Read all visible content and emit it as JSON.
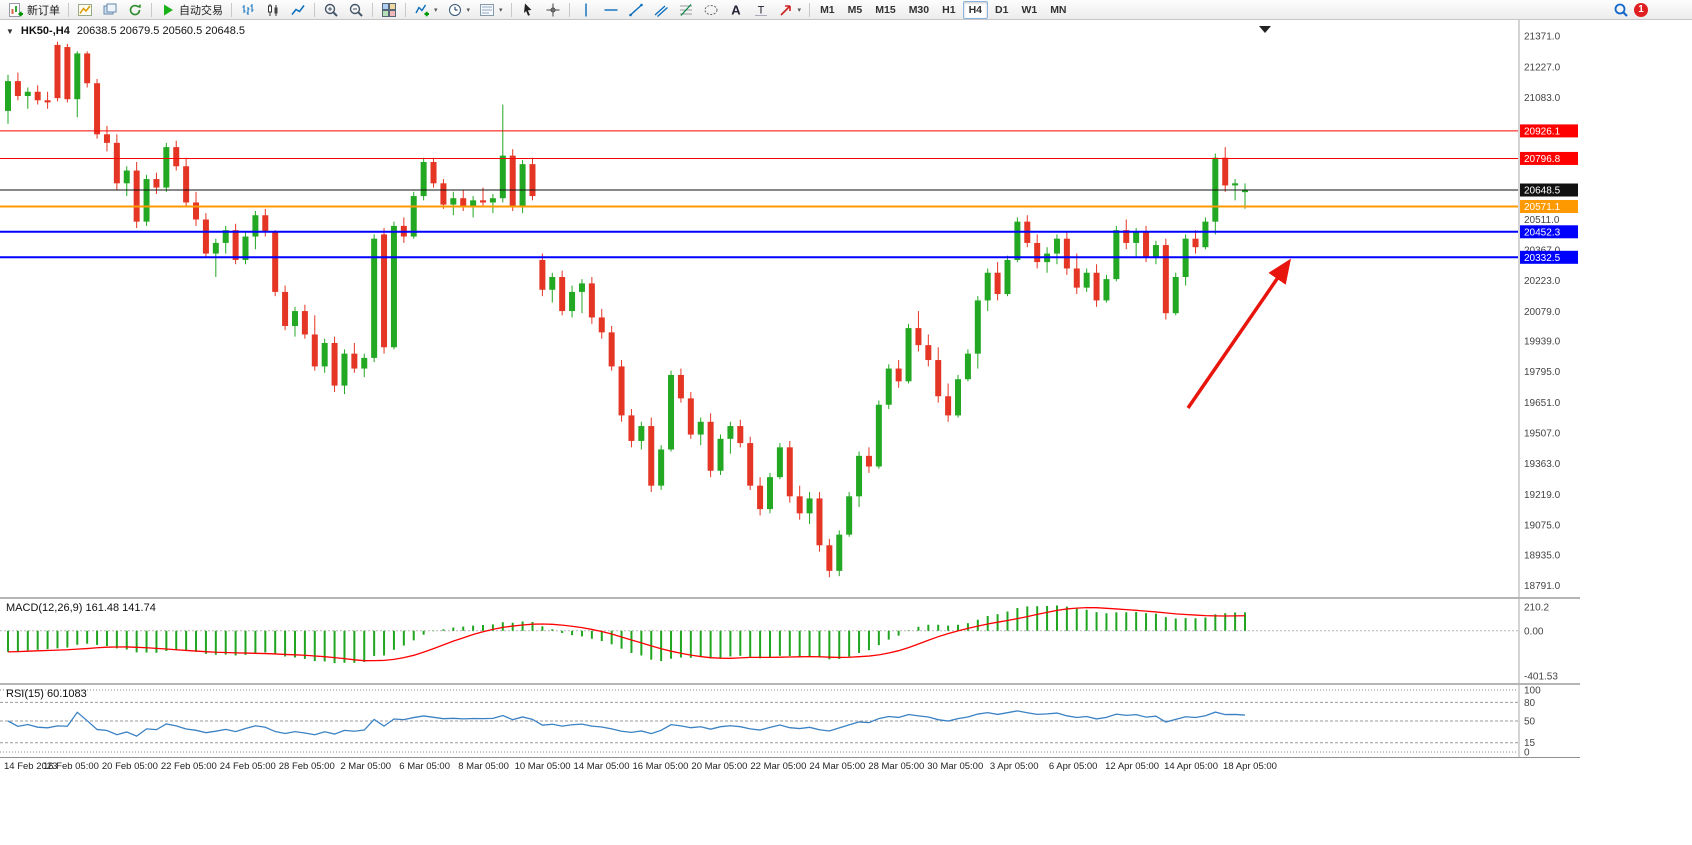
{
  "colors": {
    "up": "#22a822",
    "down": "#e53524",
    "macd_hist": "#1fa51f",
    "macd_signal": "#ff0000",
    "rsi_line": "#3b82c4",
    "axis_text": "#444444",
    "arrow": "#e8150d"
  },
  "toolbar": {
    "new_order_label": "新订单",
    "autotrading_label": "自动交易",
    "timeframes": [
      "M1",
      "M5",
      "M15",
      "M30",
      "H1",
      "H4",
      "D1",
      "W1",
      "MN"
    ],
    "active_timeframe": "H4",
    "notification_count": "1",
    "items": [
      {
        "type": "button",
        "name": "new-order-button",
        "icon": "new-order-icon",
        "label_path": "toolbar.new_order_label"
      },
      {
        "type": "sep"
      },
      {
        "type": "button",
        "name": "new-chart-button",
        "icon": "new-chart-icon"
      },
      {
        "type": "button",
        "name": "profiles-button",
        "icon": "profiles-icon"
      },
      {
        "type": "button",
        "name": "refresh-button",
        "icon": "refresh-icon"
      },
      {
        "type": "sep"
      },
      {
        "type": "button",
        "name": "autotrading-button",
        "icon": "play-icon",
        "label_path": "toolbar.autotrading_label"
      },
      {
        "type": "sep"
      },
      {
        "type": "button",
        "name": "bar-chart-button",
        "icon": "bar-chart-icon"
      },
      {
        "type": "button",
        "name": "candlestick-chart-button",
        "icon": "candlestick-chart-icon"
      },
      {
        "type": "button",
        "name": "line-chart-button",
        "icon": "line-chart-icon"
      },
      {
        "type": "sep"
      },
      {
        "type": "button",
        "name": "zoom-in-button",
        "icon": "zoom-in-icon"
      },
      {
        "type": "button",
        "name": "zoom-out-button",
        "icon": "zoom-out-icon"
      },
      {
        "type": "sep"
      },
      {
        "type": "button",
        "name": "tile-windows-button",
        "icon": "tile-windows-icon"
      },
      {
        "type": "sep"
      },
      {
        "type": "button",
        "name": "indicators-button",
        "icon": "indicators-icon",
        "caret": true
      },
      {
        "type": "button",
        "name": "periods-button",
        "icon": "clock-icon",
        "caret": true
      },
      {
        "type": "button",
        "name": "templates-button",
        "icon": "templates-icon",
        "caret": true
      },
      {
        "type": "sep"
      },
      {
        "type": "button",
        "name": "cursor-button",
        "icon": "cursor-icon"
      },
      {
        "type": "button",
        "name": "crosshair-button",
        "icon": "crosshair-icon"
      },
      {
        "type": "sep"
      },
      {
        "type": "button",
        "name": "vertical-line-button",
        "icon": "vline-icon"
      },
      {
        "type": "button",
        "name": "horizontal-line-button",
        "icon": "hline-icon"
      },
      {
        "type": "button",
        "name": "trendline-button",
        "icon": "trendline-icon"
      },
      {
        "type": "button",
        "name": "channel-button",
        "icon": "channel-icon"
      },
      {
        "type": "button",
        "name": "fibonacci-button",
        "icon": "fibonacci-icon"
      },
      {
        "type": "button",
        "name": "shapes-button",
        "icon": "shapes-icon"
      },
      {
        "type": "button",
        "name": "text-button",
        "icon": "text-icon"
      },
      {
        "type": "button",
        "name": "label-button",
        "icon": "label-icon"
      },
      {
        "type": "button",
        "name": "arrows-button",
        "icon": "arrow-icon",
        "caret": true
      },
      {
        "type": "sep"
      },
      {
        "type": "timeframes"
      },
      {
        "type": "spacer"
      },
      {
        "type": "button",
        "name": "search-button",
        "icon": "search-icon"
      },
      {
        "type": "badge",
        "name": "notification-badge",
        "label": "1"
      }
    ]
  },
  "chart": {
    "title": "HK50-,H4",
    "ohlc_readout": "20638.5 20679.5 20560.5 20648.5",
    "macd_title": "MACD(12,26,9)",
    "macd_values": "161.48 141.74",
    "rsi_title": "RSI(15)",
    "rsi_value": "60.1083"
  },
  "chart_data": {
    "type": "candlestick",
    "symbol": "HK50-",
    "timeframe": "H4",
    "ohlc_current": {
      "open": 20638.5,
      "high": 20679.5,
      "low": 20560.5,
      "close": 20648.5
    },
    "ylim": [
      18770,
      21400
    ],
    "price_axis_ticks": [
      "21371.0",
      "21227.0",
      "21083.0",
      "20511.0",
      "20367.0",
      "20223.0",
      "20079.0",
      "19939.0",
      "19795.0",
      "19651.0",
      "19507.0",
      "19363.0",
      "19219.0",
      "19075.0",
      "18935.0",
      "18791.0"
    ],
    "hlines": [
      {
        "value": 20926.1,
        "label": "20926.1",
        "color": "#ff0000",
        "width": 1
      },
      {
        "value": 20796.8,
        "label": "20796.8",
        "color": "#ff0000",
        "width": 1
      },
      {
        "value": 20571.1,
        "label": "20571.1",
        "color": "#ff9900",
        "width": 2
      },
      {
        "value": 20452.3,
        "label": "20452.3",
        "color": "#0000ff",
        "width": 2
      },
      {
        "value": 20332.5,
        "label": "20332.5",
        "color": "#0000ff",
        "width": 2
      }
    ],
    "price_line": {
      "value": 20648.5,
      "label": "20648.5",
      "color": "#111111"
    },
    "candles": [
      [
        21020,
        21190,
        20960,
        21160
      ],
      [
        21160,
        21200,
        21070,
        21090
      ],
      [
        21090,
        21130,
        21030,
        21110
      ],
      [
        21110,
        21140,
        21050,
        21070
      ],
      [
        21070,
        21110,
        21030,
        21060
      ],
      [
        21330,
        21345,
        21065,
        21080
      ],
      [
        21320,
        21335,
        21060,
        21075
      ],
      [
        21075,
        21300,
        20990,
        21290
      ],
      [
        21290,
        21300,
        21130,
        21150
      ],
      [
        21150,
        21170,
        20890,
        20910
      ],
      [
        20910,
        20950,
        20830,
        20870
      ],
      [
        20870,
        20910,
        20650,
        20680
      ],
      [
        20680,
        20760,
        20620,
        20740
      ],
      [
        20740,
        20780,
        20470,
        20500
      ],
      [
        20500,
        20720,
        20480,
        20700
      ],
      [
        20700,
        20730,
        20630,
        20660
      ],
      [
        20660,
        20870,
        20640,
        20850
      ],
      [
        20850,
        20880,
        20740,
        20760
      ],
      [
        20760,
        20800,
        20570,
        20590
      ],
      [
        20590,
        20640,
        20480,
        20510
      ],
      [
        20510,
        20540,
        20330,
        20350
      ],
      [
        20350,
        20420,
        20240,
        20400
      ],
      [
        20400,
        20480,
        20350,
        20460
      ],
      [
        20460,
        20490,
        20300,
        20320
      ],
      [
        20320,
        20450,
        20300,
        20430
      ],
      [
        20430,
        20550,
        20370,
        20530
      ],
      [
        20530,
        20560,
        20430,
        20450
      ],
      [
        20450,
        20460,
        20150,
        20170
      ],
      [
        20170,
        20200,
        19990,
        20010
      ],
      [
        20010,
        20100,
        19960,
        20080
      ],
      [
        20080,
        20110,
        19950,
        19970
      ],
      [
        19970,
        20060,
        19800,
        19820
      ],
      [
        19820,
        19950,
        19790,
        19930
      ],
      [
        19930,
        19960,
        19700,
        19730
      ],
      [
        19730,
        19900,
        19690,
        19880
      ],
      [
        19880,
        19930,
        19790,
        19810
      ],
      [
        19810,
        19880,
        19770,
        19860
      ],
      [
        19860,
        20440,
        19840,
        20420
      ],
      [
        20440,
        20470,
        19880,
        19910
      ],
      [
        19910,
        20500,
        19900,
        20480
      ],
      [
        20480,
        20520,
        20400,
        20430
      ],
      [
        20430,
        20640,
        20420,
        20620
      ],
      [
        20620,
        20800,
        20600,
        20780
      ],
      [
        20780,
        20800,
        20660,
        20680
      ],
      [
        20680,
        20700,
        20560,
        20580
      ],
      [
        20580,
        20640,
        20530,
        20610
      ],
      [
        20610,
        20650,
        20550,
        20570
      ],
      [
        20570,
        20620,
        20520,
        20600
      ],
      [
        20600,
        20660,
        20570,
        20590
      ],
      [
        20590,
        20630,
        20540,
        20610
      ],
      [
        20610,
        21050,
        20590,
        20810
      ],
      [
        20810,
        20840,
        20550,
        20570
      ],
      [
        20570,
        20790,
        20540,
        20770
      ],
      [
        20770,
        20800,
        20600,
        20620
      ],
      [
        20320,
        20350,
        20150,
        20180
      ],
      [
        20180,
        20260,
        20120,
        20240
      ],
      [
        20240,
        20270,
        20060,
        20080
      ],
      [
        20080,
        20200,
        20050,
        20170
      ],
      [
        20170,
        20230,
        20070,
        20210
      ],
      [
        20210,
        20240,
        20020,
        20050
      ],
      [
        20050,
        20090,
        19950,
        19980
      ],
      [
        19980,
        20010,
        19800,
        19820
      ],
      [
        19820,
        19850,
        19560,
        19590
      ],
      [
        19590,
        19620,
        19440,
        19470
      ],
      [
        19470,
        19560,
        19430,
        19540
      ],
      [
        19540,
        19580,
        19230,
        19260
      ],
      [
        19260,
        19450,
        19240,
        19430
      ],
      [
        19430,
        19800,
        19420,
        19780
      ],
      [
        19780,
        19810,
        19650,
        19670
      ],
      [
        19670,
        19700,
        19480,
        19500
      ],
      [
        19500,
        19580,
        19450,
        19560
      ],
      [
        19560,
        19600,
        19300,
        19330
      ],
      [
        19330,
        19500,
        19310,
        19480
      ],
      [
        19480,
        19560,
        19410,
        19540
      ],
      [
        19540,
        19570,
        19440,
        19460
      ],
      [
        19460,
        19490,
        19240,
        19260
      ],
      [
        19260,
        19300,
        19120,
        19150
      ],
      [
        19150,
        19320,
        19130,
        19300
      ],
      [
        19300,
        19460,
        19290,
        19440
      ],
      [
        19440,
        19470,
        19180,
        19210
      ],
      [
        19210,
        19260,
        19100,
        19130
      ],
      [
        19130,
        19230,
        19080,
        19200
      ],
      [
        19200,
        19230,
        18950,
        18980
      ],
      [
        18980,
        19010,
        18830,
        18860
      ],
      [
        18860,
        19050,
        18835,
        19030
      ],
      [
        19030,
        19230,
        19020,
        19210
      ],
      [
        19210,
        19420,
        19160,
        19400
      ],
      [
        19400,
        19440,
        19320,
        19350
      ],
      [
        19350,
        19660,
        19340,
        19640
      ],
      [
        19640,
        19830,
        19620,
        19810
      ],
      [
        19810,
        19850,
        19720,
        19750
      ],
      [
        19750,
        20020,
        19740,
        20000
      ],
      [
        20000,
        20080,
        19890,
        19920
      ],
      [
        19920,
        19970,
        19820,
        19850
      ],
      [
        19850,
        19910,
        19650,
        19680
      ],
      [
        19680,
        19740,
        19560,
        19590
      ],
      [
        19590,
        19780,
        19580,
        19760
      ],
      [
        19760,
        19900,
        19750,
        19880
      ],
      [
        19880,
        20150,
        19810,
        20130
      ],
      [
        20130,
        20280,
        20080,
        20260
      ],
      [
        20260,
        20310,
        20130,
        20160
      ],
      [
        20160,
        20340,
        20150,
        20320
      ],
      [
        20320,
        20520,
        20310,
        20500
      ],
      [
        20500,
        20530,
        20380,
        20400
      ],
      [
        20400,
        20440,
        20280,
        20310
      ],
      [
        20310,
        20380,
        20260,
        20350
      ],
      [
        20350,
        20440,
        20300,
        20420
      ],
      [
        20420,
        20450,
        20250,
        20280
      ],
      [
        20280,
        20350,
        20160,
        20190
      ],
      [
        20190,
        20280,
        20170,
        20260
      ],
      [
        20260,
        20300,
        20100,
        20130
      ],
      [
        20130,
        20250,
        20120,
        20230
      ],
      [
        20230,
        20480,
        20220,
        20460
      ],
      [
        20460,
        20510,
        20370,
        20400
      ],
      [
        20400,
        20470,
        20330,
        20450
      ],
      [
        20450,
        20480,
        20310,
        20330
      ],
      [
        20330,
        20410,
        20300,
        20390
      ],
      [
        20390,
        20420,
        20040,
        20070
      ],
      [
        20070,
        20260,
        20060,
        20240
      ],
      [
        20240,
        20440,
        20200,
        20420
      ],
      [
        20420,
        20460,
        20350,
        20380
      ],
      [
        20380,
        20520,
        20370,
        20500
      ],
      [
        20500,
        20820,
        20440,
        20800
      ],
      [
        20800,
        20850,
        20640,
        20670
      ],
      [
        20670,
        20700,
        20600,
        20680
      ],
      [
        20638.5,
        20679.5,
        20560.5,
        20648.5
      ]
    ],
    "dates": [
      "14 Feb 2023",
      "16 Feb 05:00",
      "20 Feb 05:00",
      "22 Feb 05:00",
      "24 Feb 05:00",
      "28 Feb 05:00",
      "2 Mar 05:00",
      "6 Mar 05:00",
      "8 Mar 05:00",
      "10 Mar 05:00",
      "14 Mar 05:00",
      "16 Mar 05:00",
      "20 Mar 05:00",
      "22 Mar 05:00",
      "24 Mar 05:00",
      "28 Mar 05:00",
      "30 Mar 05:00",
      "3 Apr 05:00",
      "6 Apr 05:00",
      "12 Apr 05:00",
      "14 Apr 05:00",
      "18 Apr 05:00"
    ],
    "indicators": {
      "macd": {
        "label": "MACD(12,26,9)",
        "main": 161.48,
        "signal": 141.74,
        "range": [
          -430,
          230
        ],
        "axis": [
          {
            "text": "210.2",
            "value": 210.2
          },
          {
            "text": "0.00",
            "value": 0
          },
          {
            "text": "-401.53",
            "value": -401.53
          }
        ]
      },
      "rsi": {
        "label": "RSI(15)",
        "value": 60.1083,
        "levels": [
          80,
          50,
          15
        ],
        "range": [
          0,
          100
        ],
        "axis": [
          {
            "text": "100",
            "value": 100
          },
          {
            "text": "80",
            "value": 80
          },
          {
            "text": "50",
            "value": 50
          },
          {
            "text": "15",
            "value": 15
          },
          {
            "text": "0",
            "value": 0
          }
        ]
      }
    },
    "annotation_arrow": {
      "from": [
        1188,
        388
      ],
      "to": [
        1288,
        243
      ]
    }
  }
}
